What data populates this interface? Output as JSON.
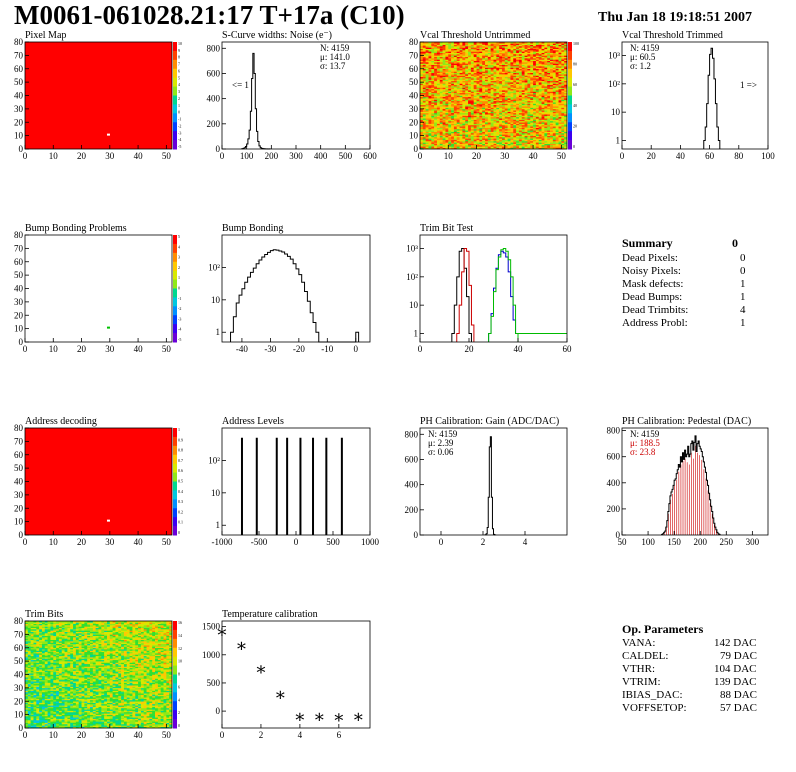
{
  "header": {
    "title": "M0061-061028.21:17 T+17a (C10)",
    "date": "Thu Jan 18 19:18:51 2007"
  },
  "colors": {
    "line": "#000000",
    "red": "#cc0000",
    "green": "#00bb00",
    "blue": "#0000cc",
    "hot": "#ff0000"
  },
  "chart_data": [
    {
      "id": "pixel-map",
      "type": "heatmap",
      "title": "Pixel Map",
      "xlim": [
        0,
        52
      ],
      "ylim": [
        0,
        80
      ],
      "xticks": [
        "0",
        "10",
        "20",
        "30",
        "40",
        "50"
      ],
      "yticks": [
        "0",
        "10",
        "20",
        "30",
        "40",
        "50",
        "60",
        "70",
        "80"
      ],
      "zticks": [
        "10",
        "9",
        "8",
        "7",
        "6",
        "5",
        "4",
        "3",
        "2",
        "1",
        "0",
        "-1",
        "-2",
        "-3",
        "-4",
        "-5"
      ],
      "fill": "uniform-red",
      "hot_pixel": [
        29,
        10
      ]
    },
    {
      "id": "scurve",
      "type": "histogram",
      "title": "S-Curve widths: Noise (e⁻)",
      "xlim": [
        0,
        600
      ],
      "ylim": [
        0,
        850
      ],
      "xticks": [
        "0",
        "100",
        "200",
        "300",
        "400",
        "500",
        "600"
      ],
      "yticks": [
        "0",
        "200",
        "400",
        "600",
        "800"
      ],
      "stats": [
        "N: 4159",
        "μ: 141.0",
        "σ: 13.7"
      ],
      "annotation": "<= 1",
      "bin_width": 5,
      "x_start": 80,
      "values": [
        2,
        5,
        10,
        20,
        40,
        80,
        150,
        300,
        560,
        760,
        600,
        320,
        140,
        60,
        25,
        10,
        5,
        3,
        2,
        1,
        1,
        0,
        1
      ]
    },
    {
      "id": "vcal-untrimmed",
      "type": "heatmap",
      "title": "Vcal Threshold Untrimmed",
      "xlim": [
        0,
        52
      ],
      "ylim": [
        0,
        80
      ],
      "xticks": [
        "0",
        "10",
        "20",
        "30",
        "40",
        "50"
      ],
      "yticks": [
        "0",
        "10",
        "20",
        "30",
        "40",
        "50",
        "60",
        "70",
        "80"
      ],
      "zticks": [
        "100",
        "80",
        "60",
        "40",
        "20",
        "0"
      ],
      "fill": "noisy-orange"
    },
    {
      "id": "vcal-trimmed",
      "type": "histogram",
      "title": "Vcal Threshold Trimmed",
      "log": true,
      "xlim": [
        0,
        100
      ],
      "ylim": [
        0.5,
        3000
      ],
      "xticks": [
        "0",
        "20",
        "40",
        "60",
        "80",
        "100"
      ],
      "yticks": [
        "1",
        "10",
        "10²",
        "10³"
      ],
      "stats": [
        "N: 4159",
        "μ: 60.5",
        "σ:  1.2"
      ],
      "annotation": "1 =>",
      "bin_width": 1,
      "x_start": 56,
      "values": [
        1,
        3,
        20,
        200,
        1100,
        1800,
        800,
        150,
        20,
        3,
        1
      ]
    },
    {
      "id": "bump-problems",
      "type": "heatmap",
      "title": "Bump Bonding Problems",
      "xlim": [
        0,
        52
      ],
      "ylim": [
        0,
        80
      ],
      "xticks": [
        "0",
        "10",
        "20",
        "30",
        "40",
        "50"
      ],
      "yticks": [
        "0",
        "10",
        "20",
        "30",
        "40",
        "50",
        "60",
        "70",
        "80"
      ],
      "zticks": [
        "5",
        "4",
        "3",
        "2",
        "1",
        "0",
        "-1",
        "-2",
        "-3",
        "-4",
        "-5"
      ],
      "fill": "white",
      "hot_pixel": [
        29,
        10
      ]
    },
    {
      "id": "bump-bonding",
      "type": "histogram",
      "title": "Bump Bonding",
      "log": true,
      "xlim": [
        -47,
        5
      ],
      "ylim": [
        0.5,
        1000
      ],
      "xticks": [
        "-40",
        "-30",
        "-20",
        "-10",
        "0"
      ],
      "yticks": [
        "1",
        "10",
        "10²"
      ],
      "bin_width": 1,
      "x_start": -44,
      "values": [
        1,
        3,
        8,
        14,
        22,
        35,
        50,
        70,
        95,
        130,
        170,
        210,
        250,
        290,
        330,
        350,
        340,
        320,
        300,
        260,
        220,
        180,
        130,
        90,
        60,
        35,
        18,
        9,
        4,
        2,
        1,
        0,
        0,
        0,
        0,
        0,
        0,
        0,
        0,
        0,
        0,
        0,
        0,
        0,
        1
      ]
    },
    {
      "id": "trim-bit",
      "type": "histogram",
      "title": "Trim Bit Test",
      "log": true,
      "xlim": [
        0,
        60
      ],
      "ylim": [
        0.5,
        3000
      ],
      "xticks": [
        "0",
        "20",
        "40",
        "60"
      ],
      "yticks": [
        "1",
        "10",
        "10²",
        "10³"
      ],
      "series": [
        {
          "color": "black",
          "x_start": 13,
          "values": [
            1,
            10,
            100,
            800,
            1000,
            200,
            20,
            1
          ]
        },
        {
          "color": "red",
          "x_start": 15,
          "values": [
            1,
            10,
            150,
            1000,
            800,
            50,
            2
          ]
        },
        {
          "color": "blue",
          "x_start": 28,
          "values": [
            1,
            5,
            40,
            200,
            600,
            800,
            700,
            500,
            150,
            20,
            3,
            1
          ]
        },
        {
          "color": "green",
          "x_start": 28,
          "values": [
            1,
            4,
            30,
            180,
            500,
            900,
            1000,
            800,
            400,
            100,
            10,
            1
          ]
        }
      ]
    },
    {
      "id": "address-decoding",
      "type": "heatmap",
      "title": "Address decoding",
      "xlim": [
        0,
        52
      ],
      "ylim": [
        0,
        80
      ],
      "xticks": [
        "0",
        "10",
        "20",
        "30",
        "40",
        "50"
      ],
      "yticks": [
        "0",
        "10",
        "20",
        "30",
        "40",
        "50",
        "60",
        "70",
        "80"
      ],
      "zticks": [
        "1",
        "0.9",
        "0.8",
        "0.7",
        "0.6",
        "0.5",
        "0.4",
        "0.3",
        "0.2",
        "0.1",
        "0"
      ],
      "fill": "uniform-red",
      "hot_pixel": [
        29,
        10
      ]
    },
    {
      "id": "address-levels",
      "type": "histogram",
      "title": "Address Levels",
      "log": true,
      "xlim": [
        -1000,
        1000
      ],
      "ylim": [
        0.5,
        1000
      ],
      "xticks": [
        "-1000",
        "-500",
        "0",
        "500",
        "1000"
      ],
      "yticks": [
        "1",
        "10",
        "10²"
      ],
      "spikes": [
        -730,
        -530,
        -260,
        -120,
        60,
        230,
        410,
        620
      ],
      "spike_height": 500
    },
    {
      "id": "ph-gain",
      "type": "histogram",
      "title": "PH Calibration: Gain (ADC/DAC)",
      "xlim": [
        -1,
        6
      ],
      "ylim": [
        0,
        850
      ],
      "xticks": [
        "0",
        "2",
        "4"
      ],
      "yticks": [
        "0",
        "200",
        "400",
        "600",
        "800"
      ],
      "stats": [
        "N: 4159",
        "μ: 2.39",
        "σ: 0.06"
      ],
      "bin_width": 0.05,
      "x_start": 2.1,
      "values": [
        2,
        10,
        60,
        300,
        700,
        780,
        300,
        50,
        5,
        1
      ]
    },
    {
      "id": "ph-pedestal",
      "type": "histogram",
      "title": "PH Calibration: Pedestal (DAC)",
      "xlim": [
        50,
        330
      ],
      "ylim": [
        0,
        820
      ],
      "xticks": [
        "50",
        "100",
        "150",
        "200",
        "250",
        "300"
      ],
      "yticks": [
        "0",
        "200",
        "400",
        "600",
        "800"
      ],
      "stats": [
        "N: 4159"
      ],
      "red_stats": [
        "μ: 188.5",
        "σ: 23.8"
      ],
      "bin_width": 2,
      "x_start": 126,
      "values": [
        5,
        10,
        20,
        30,
        60,
        110,
        180,
        240,
        300,
        330,
        350,
        380,
        420,
        430,
        470,
        500,
        540,
        520,
        600,
        560,
        630,
        580,
        650,
        600,
        620,
        680,
        600,
        620,
        700,
        720,
        650,
        710,
        760,
        640,
        700,
        720,
        680,
        660,
        640,
        600,
        560,
        520,
        480,
        420,
        380,
        320,
        270,
        220,
        180,
        130,
        90,
        60,
        40,
        20,
        10,
        5
      ]
    },
    {
      "id": "trim-bits",
      "type": "heatmap",
      "title": "Trim Bits",
      "xlim": [
        0,
        52
      ],
      "ylim": [
        0,
        80
      ],
      "xticks": [
        "0",
        "10",
        "20",
        "30",
        "40",
        "50"
      ],
      "yticks": [
        "0",
        "10",
        "20",
        "30",
        "40",
        "50",
        "60",
        "70",
        "80"
      ],
      "zticks": [
        "16",
        "14",
        "12",
        "10",
        "8",
        "6",
        "4",
        "2",
        "0"
      ],
      "fill": "noisy-green"
    },
    {
      "id": "temperature",
      "type": "scatter",
      "title": "Temperature calibration",
      "xlim": [
        0,
        7.6
      ],
      "ylim": [
        -300,
        1600
      ],
      "xticks": [
        "0",
        "2",
        "4",
        "6"
      ],
      "yticks": [
        "0",
        "500",
        "1000",
        "1500"
      ],
      "x": [
        0,
        1,
        2,
        3,
        4,
        5,
        6,
        7
      ],
      "y": [
        1400,
        1150,
        730,
        280,
        -110,
        -110,
        -120,
        -110
      ]
    }
  ],
  "summary": {
    "title": "Summary",
    "total": "0",
    "rows": [
      {
        "label": "Dead Pixels:",
        "value": "0"
      },
      {
        "label": "Noisy Pixels:",
        "value": "0"
      },
      {
        "label": "Mask defects:",
        "value": "1"
      },
      {
        "label": "Dead Bumps:",
        "value": "1"
      },
      {
        "label": "Dead Trimbits:",
        "value": "4"
      },
      {
        "label": "Address Probl:",
        "value": "1"
      }
    ]
  },
  "op_params": {
    "title": "Op. Parameters",
    "rows": [
      {
        "label": "VANA:",
        "value": "142 DAC"
      },
      {
        "label": "CALDEL:",
        "value": "79 DAC"
      },
      {
        "label": "VTHR:",
        "value": "104 DAC"
      },
      {
        "label": "VTRIM:",
        "value": "139 DAC"
      },
      {
        "label": "IBIAS_DAC:",
        "value": "88 DAC"
      },
      {
        "label": "VOFFSETOP:",
        "value": "57 DAC"
      }
    ]
  }
}
